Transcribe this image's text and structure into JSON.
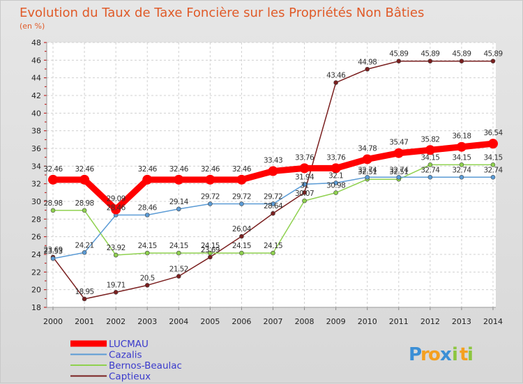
{
  "chart_data": {
    "type": "line",
    "title": "Evolution du Taux de Taxe Foncière sur les Propriétés Non Bâties",
    "subtitle": "(en %)",
    "xlabel": "",
    "ylabel": "",
    "ylim": [
      18,
      48
    ],
    "yticks": [
      18,
      20,
      22,
      24,
      26,
      28,
      30,
      32,
      34,
      36,
      38,
      40,
      42,
      44,
      46,
      48
    ],
    "categories": [
      "2000",
      "2001",
      "2002",
      "2003",
      "2004",
      "2005",
      "2006",
      "2007",
      "2008",
      "2009",
      "2010",
      "2011",
      "2012",
      "2013",
      "2014"
    ],
    "grid": true,
    "legend_position": "bottom-left",
    "series": [
      {
        "name": "LUCMAU",
        "color": "#ff0000",
        "values": [
          32.46,
          32.46,
          29.09,
          32.46,
          32.46,
          32.46,
          32.46,
          33.43,
          33.76,
          33.76,
          34.78,
          35.47,
          35.82,
          36.18,
          36.54
        ],
        "labels": [
          "32.46",
          "32.46",
          "29.09",
          "32.46",
          "32.46",
          "32.46",
          "32.46",
          "33.43",
          "33.76",
          "33.76",
          "34.78",
          "35.47",
          "35.82",
          "36.18",
          "36.54"
        ]
      },
      {
        "name": "Cazalis",
        "color": "#5b9bd5",
        "values": [
          23.53,
          24.21,
          28.46,
          28.46,
          29.14,
          29.72,
          29.72,
          29.72,
          31.94,
          32.1,
          32.74,
          32.74,
          32.74,
          32.74,
          32.74
        ],
        "labels": [
          "23.53",
          "24.21",
          "28.46",
          "28.46",
          "29.14",
          "29.72",
          "29.72",
          "29.72",
          "31.94",
          "32.1",
          "32.74",
          "32.74",
          "32.74",
          "32.74",
          "32.74"
        ]
      },
      {
        "name": "Bernos-Beaulac",
        "color": "#8fd14f",
        "values": [
          28.98,
          28.98,
          23.92,
          24.15,
          24.15,
          24.15,
          24.15,
          24.15,
          30.07,
          30.98,
          32.51,
          32.51,
          34.15,
          34.15,
          34.15
        ],
        "labels": [
          "28.98",
          "28.98",
          "23.92",
          "24.15",
          "24.15",
          "24.15",
          "24.15",
          "24.15",
          "30.07",
          "30.98",
          "32.51",
          "32.51",
          "34.15",
          "34.15",
          "34.15"
        ]
      },
      {
        "name": "Captieux",
        "color": "#7a1f1f",
        "values": [
          23.69,
          18.95,
          19.71,
          20.5,
          21.52,
          23.69,
          26.04,
          28.64,
          31.0,
          43.46,
          44.98,
          45.89,
          45.89,
          45.89,
          45.89
        ],
        "labels": [
          "23.69",
          "18.95",
          "19.71",
          "20.5",
          "21.52",
          "23.69",
          "26.04",
          "28.64",
          "31",
          "43.46",
          "44.98",
          "45.89",
          "45.89",
          "45.89",
          "45.89"
        ]
      }
    ]
  },
  "logo": {
    "letters": [
      "P",
      "r",
      "o",
      "x",
      "i",
      "t",
      "i"
    ],
    "colors": [
      "#3b8fd6",
      "#f4a020",
      "#f4a020",
      "#3b8fd6",
      "#8cc63f",
      "#f4a020",
      "#8cc63f"
    ]
  }
}
